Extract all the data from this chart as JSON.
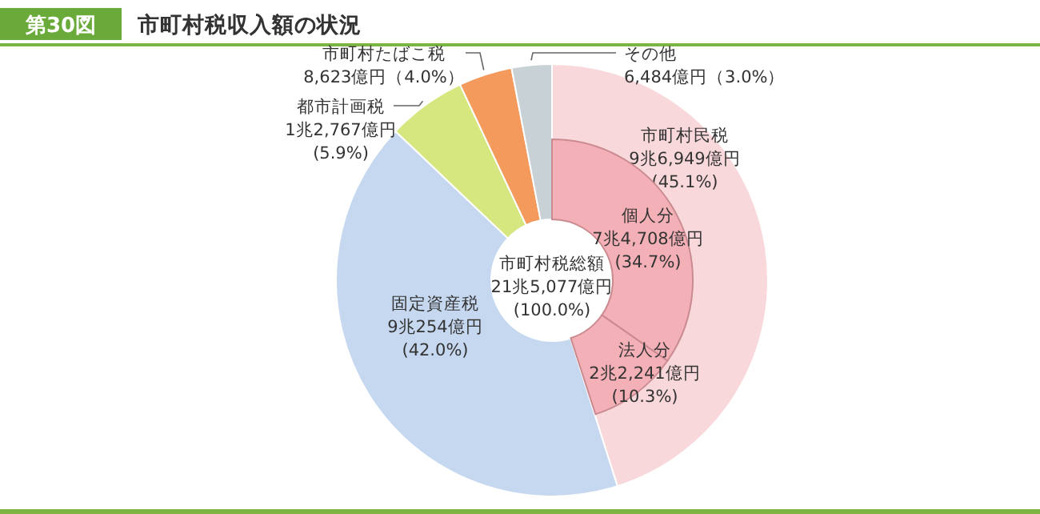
{
  "chart_data": [
    {
      "type": "donut",
      "title": "市町村税収入額の状況",
      "annotations": [
        "第30図",
        "市町村税総額\n21兆5,077億円\n(100.0%)"
      ],
      "categories": [
        "市町村民税",
        "固定資産税",
        "都市計画税",
        "市町村たばこ税",
        "その他"
      ],
      "values": [
        45.1,
        42.0,
        5.9,
        4.0,
        3.0
      ],
      "value_labels": [
        "9兆6,949億円\n(45.1%)",
        "9兆254億円\n(42.0%)",
        "1兆2,767億円\n(5.9%)",
        "8,623億円（4.0%）",
        "6,484億円（3.0%）"
      ],
      "colors": [
        "#f9d8db",
        "#c6d8ef",
        "#d6e77f",
        "#f39a5c",
        "#c8d1d6"
      ]
    },
    {
      "type": "donut",
      "categories": [
        "個人分",
        "法人分"
      ],
      "values": [
        34.7,
        10.3
      ],
      "value_labels": [
        "7兆4,708億円\n(34.7%)",
        "2兆2,241億円\n(10.3%)"
      ],
      "colors": [
        "#f3b0b6",
        "#f3b0b6"
      ]
    }
  ]
}
